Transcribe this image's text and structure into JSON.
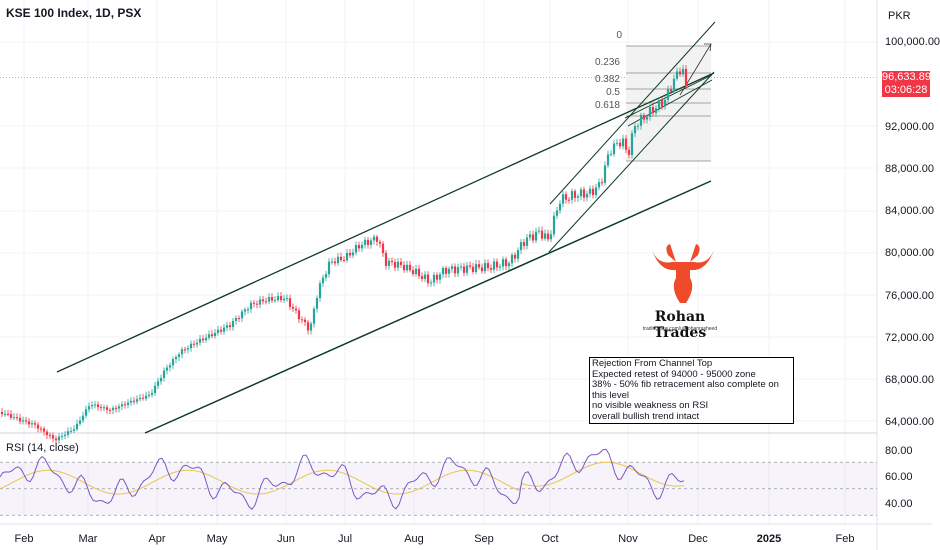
{
  "header": {
    "title": "KSE 100 Index, 1D, PSX"
  },
  "price_axis": {
    "currency": "PKR",
    "ticks": [
      "100,000.00",
      "92,000.00",
      "88,000.00",
      "84,000.00",
      "80,000.00",
      "76,000.00",
      "72,000.00",
      "68,000.00",
      "64,000.00"
    ],
    "last_price": "96,633.89",
    "countdown": "03:06:28"
  },
  "time_axis": {
    "ticks": [
      "Feb",
      "Mar",
      "Apr",
      "May",
      "Jun",
      "Jul",
      "Aug",
      "Sep",
      "Oct",
      "Nov",
      "Dec",
      "2025",
      "Feb"
    ]
  },
  "fib_labels": [
    "0",
    "0.236",
    "0.382",
    "0.5",
    "0.618"
  ],
  "rsi": {
    "label": "RSI (14, close)",
    "ticks": [
      "80.00",
      "60.00",
      "40.00"
    ]
  },
  "annotation": {
    "lines": [
      "Rejection From Channel Top",
      "Expected retest of 94000 - 95000 zone",
      "38% - 50% fib retracement also complete on this level",
      "no visible weakness on RSI",
      "overall bullish trend intact"
    ]
  },
  "branding": {
    "name": "Rohan Trades",
    "url": "tradingview.com/u/Rohanrasheed"
  },
  "colors": {
    "up": "#26a69a",
    "down": "#f23645",
    "channel": "#0d3b24",
    "rsi": "#7e57c2",
    "rsi_ma": "#e6c84a"
  },
  "chart_data": {
    "type": "candlestick",
    "title": "KSE 100 Index, 1D, PSX",
    "currency": "PKR",
    "x_range": [
      "Jan",
      "Feb 2025"
    ],
    "y_range": [
      62000,
      104000
    ],
    "last_price": 96633.89,
    "price_path": [
      [
        "Jan",
        64000
      ],
      [
        "Feb",
        63500
      ],
      [
        "Mar",
        65500
      ],
      [
        "Apr",
        69000
      ],
      [
        "May",
        72000
      ],
      [
        "Jun",
        75500
      ],
      [
        "Jun",
        72500
      ],
      [
        "Jul",
        78500
      ],
      [
        "Jul",
        81500
      ],
      [
        "Aug",
        79000
      ],
      [
        "Aug",
        78000
      ],
      [
        "Sep",
        79000
      ],
      [
        "Sep",
        80000
      ],
      [
        "Oct",
        81500
      ],
      [
        "Oct",
        86000
      ],
      [
        "Nov",
        89000
      ],
      [
        "Nov",
        94000
      ],
      [
        "Nov",
        98500
      ],
      [
        "Nov",
        96633.89
      ]
    ],
    "fibonacci": {
      "levels": [
        "0",
        "0.236",
        "0.382",
        "0.5",
        "0.618"
      ]
    },
    "rsi": {
      "period": 14,
      "levels": [
        70,
        50,
        30
      ],
      "y_ticks": [
        80,
        60,
        40
      ]
    }
  }
}
